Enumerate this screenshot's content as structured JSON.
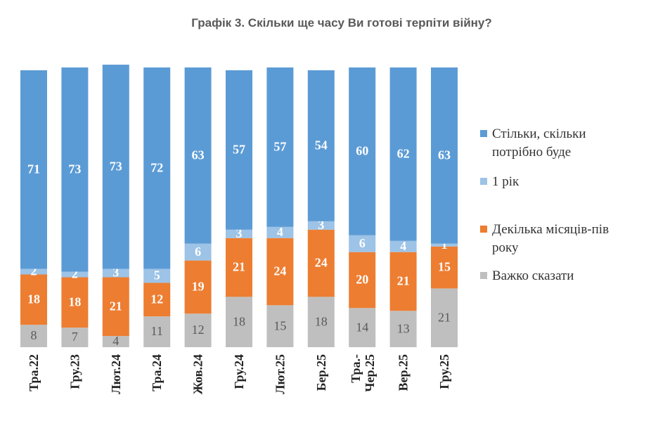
{
  "chart_data": {
    "type": "stacked_bar",
    "title": "Графік 3. Скільки ще часу Ви готові терпіти війну?",
    "categories": [
      "Тра.22",
      "Гру.23",
      "Лют.24",
      "Тра.24",
      "Жов.24",
      "Гру.24",
      "Лют.25",
      "Бер.25",
      "Тра.-Чер.25",
      "Вер.25",
      "Гру.25"
    ],
    "series": [
      {
        "name": "Важко сказати",
        "color": "#bfbfbf",
        "values": [
          8,
          7,
          4,
          11,
          12,
          18,
          15,
          18,
          14,
          13,
          21
        ]
      },
      {
        "name": "Декілька місяців-пів року",
        "color": "#ed7d31",
        "values": [
          18,
          18,
          21,
          12,
          19,
          21,
          24,
          24,
          20,
          21,
          15
        ]
      },
      {
        "name": "1 рік",
        "color": "#9dc3e6",
        "values": [
          2,
          2,
          3,
          5,
          6,
          3,
          4,
          3,
          6,
          4,
          1
        ]
      },
      {
        "name": "Стільки, скільки потрібно буде",
        "color": "#5b9bd5",
        "values": [
          71,
          73,
          73,
          72,
          63,
          57,
          57,
          54,
          60,
          62,
          63
        ]
      }
    ],
    "ylim": [
      0,
      100
    ]
  }
}
